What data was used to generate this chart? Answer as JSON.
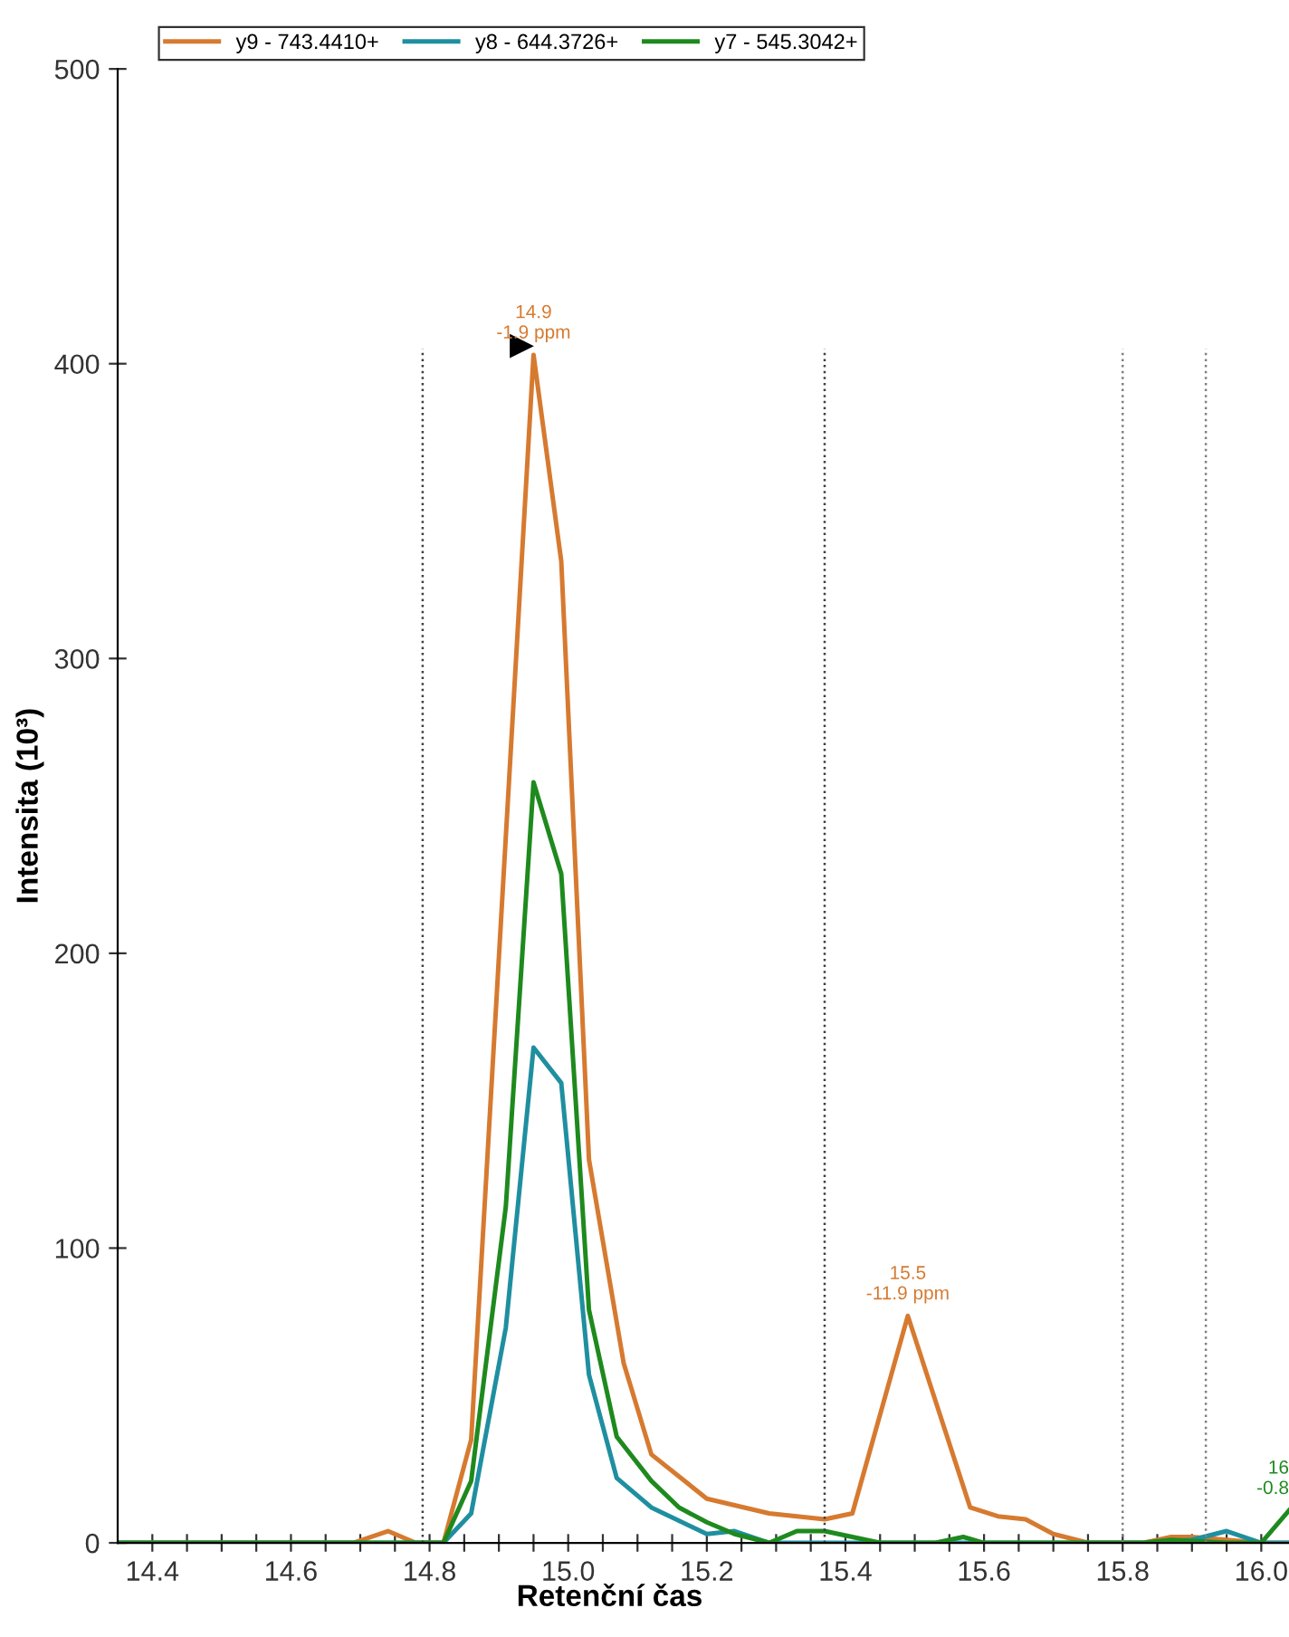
{
  "chart_data": {
    "type": "line",
    "xlabel": "Retenční čas",
    "ylabel": "Intensita (10³)",
    "xlim": [
      14.35,
      16.04
    ],
    "ylim": [
      0,
      500
    ],
    "xticks": [
      14.4,
      {
        "value": 14.45,
        "label": null
      },
      {
        "value": 14.5,
        "label": null
      },
      {
        "value": 14.55,
        "label": null
      },
      14.6,
      {
        "value": 14.65,
        "label": null
      },
      {
        "value": 14.7,
        "label": null
      },
      {
        "value": 14.75,
        "label": null
      },
      14.8,
      {
        "value": 14.85,
        "label": null
      },
      {
        "value": 14.9,
        "label": null
      },
      {
        "value": 14.95,
        "label": null
      },
      {
        "value": 15.0,
        "label": "15.0"
      },
      {
        "value": 15.05,
        "label": null
      },
      {
        "value": 15.1,
        "label": null
      },
      {
        "value": 15.15,
        "label": null
      },
      15.2,
      {
        "value": 15.25,
        "label": null
      },
      {
        "value": 15.3,
        "label": null
      },
      {
        "value": 15.35,
        "label": null
      },
      15.4,
      {
        "value": 15.45,
        "label": null
      },
      {
        "value": 15.5,
        "label": null
      },
      {
        "value": 15.55,
        "label": null
      },
      15.6,
      {
        "value": 15.65,
        "label": null
      },
      {
        "value": 15.7,
        "label": null
      },
      {
        "value": 15.75,
        "label": null
      },
      15.8,
      {
        "value": 15.85,
        "label": null
      },
      {
        "value": 15.9,
        "label": null
      },
      {
        "value": 15.95,
        "label": null
      },
      {
        "value": 16.0,
        "label": "16.0"
      }
    ],
    "yticks": [
      0,
      100,
      200,
      300,
      400,
      500
    ],
    "grid": false,
    "legend": "top",
    "marker": "none",
    "line_style": "solid",
    "series": [
      {
        "name": "y9 - 743.4410+",
        "color": "#d67a30",
        "x": [
          14.35,
          14.69,
          14.74,
          14.78,
          14.82,
          14.86,
          14.95,
          14.99,
          15.03,
          15.08,
          15.12,
          15.2,
          15.29,
          15.37,
          15.41,
          15.49,
          15.58,
          15.62,
          15.66,
          15.7,
          15.75,
          15.83,
          15.87,
          15.9,
          15.95,
          16.0,
          16.04
        ],
        "values": [
          0,
          0,
          4,
          0,
          0,
          35,
          403,
          333,
          130,
          61,
          30,
          15,
          10,
          8,
          10,
          77,
          12,
          9,
          8,
          3,
          0,
          0,
          2,
          2,
          1,
          0,
          0
        ]
      },
      {
        "name": "y8 - 644.3726+",
        "color": "#1f8fa0",
        "x": [
          14.35,
          14.82,
          14.86,
          14.91,
          14.95,
          14.99,
          15.03,
          15.07,
          15.12,
          15.2,
          15.24,
          15.29,
          15.35,
          15.83,
          15.9,
          15.95,
          16.0,
          16.04
        ],
        "values": [
          0,
          0,
          10,
          73,
          168,
          156,
          57,
          22,
          12,
          3,
          4,
          0,
          0,
          0,
          1,
          4,
          0,
          0
        ]
      },
      {
        "name": "y7 - 545.3042+",
        "color": "#1e8a1e",
        "x": [
          14.35,
          14.82,
          14.86,
          14.91,
          14.95,
          14.99,
          15.03,
          15.07,
          15.12,
          15.16,
          15.2,
          15.24,
          15.29,
          15.33,
          15.37,
          15.41,
          15.45,
          15.53,
          15.57,
          15.6,
          15.83,
          15.87,
          15.95,
          16.0,
          16.04
        ],
        "values": [
          0,
          0,
          21,
          114,
          258,
          227,
          79,
          36,
          21,
          12,
          7,
          3,
          0,
          4,
          4,
          2,
          0,
          0,
          2,
          0,
          0,
          1,
          0,
          0,
          11
        ]
      }
    ],
    "ref_lines": [
      {
        "axis": "x",
        "value": 14.79,
        "color": "#404040",
        "line_style": "dotted"
      },
      {
        "axis": "x",
        "value": 15.37,
        "color": "#404040",
        "line_style": "dotted"
      },
      {
        "axis": "x",
        "value": 15.8,
        "color": "#808080",
        "line_style": "dotted"
      },
      {
        "axis": "x",
        "value": 15.92,
        "color": "#808080",
        "line_style": "dotted"
      }
    ],
    "annotations": [
      {
        "text": "14.9\n-1.9 ppm",
        "x": 14.95,
        "y": 403
      },
      {
        "text": "15.5\n-11.9 ppm",
        "x": 15.49,
        "y": 77
      },
      {
        "text": "16\n-0.8",
        "x": 16.04,
        "y": 11
      }
    ]
  }
}
